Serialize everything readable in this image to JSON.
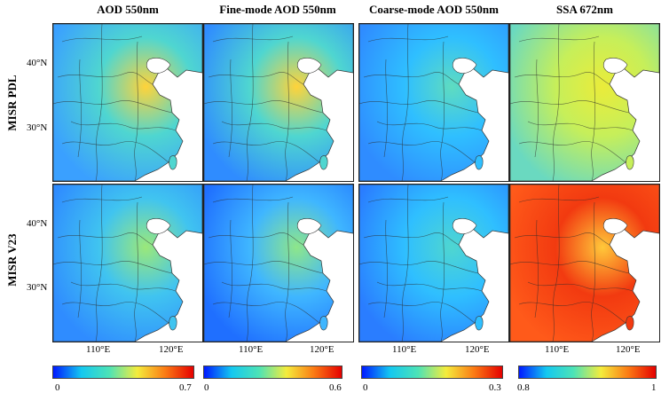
{
  "columns": [
    {
      "title": "AOD 550nm",
      "colorbar": {
        "min": "0",
        "max": "0.7",
        "colors": [
          "#0019ff",
          "#14c8f0",
          "#4de3b6",
          "#f4ec3c",
          "#fb7a14",
          "#e50000"
        ]
      }
    },
    {
      "title": "Fine-mode AOD 550nm",
      "colorbar": {
        "min": "0",
        "max": "0.6",
        "colors": [
          "#0019ff",
          "#14c8f0",
          "#4de3b6",
          "#f4ec3c",
          "#fb7a14",
          "#e50000"
        ]
      }
    },
    {
      "title": "Coarse-mode AOD 550nm",
      "colorbar": {
        "min": "0",
        "max": "0.3",
        "colors": [
          "#0019ff",
          "#14c8f0",
          "#4de3b6",
          "#f4ec3c",
          "#fb7a14",
          "#e50000"
        ]
      }
    },
    {
      "title": "SSA 672nm",
      "colorbar": {
        "min": "0.8",
        "max": "1",
        "colors": [
          "#0019ff",
          "#14c8f0",
          "#4de3b6",
          "#f4ec3c",
          "#fb7a14",
          "#e50000"
        ]
      }
    }
  ],
  "rows": [
    {
      "label": "MISR PDL"
    },
    {
      "label": "MISR V23"
    }
  ],
  "lat_ticks": [
    "40°N",
    "30°N"
  ],
  "lon_ticks": [
    "110°E",
    "120°E"
  ],
  "map_colors": {
    "r0c0": [
      "#3aa0ff",
      "#4fd6d0",
      "#ffd33a"
    ],
    "r0c1": [
      "#2f8cff",
      "#4fd6d0",
      "#ffd33a"
    ],
    "r0c2": [
      "#2f8cff",
      "#2fbfff",
      "#5fdcc0"
    ],
    "r0c3": [
      "#6ad9c0",
      "#c6ef5a",
      "#eaec3a"
    ],
    "r1c0": [
      "#2f8cff",
      "#40c4f0",
      "#9be87a"
    ],
    "r1c1": [
      "#1f6fff",
      "#3fb6ff",
      "#8ee68a"
    ],
    "r1c2": [
      "#2a7dff",
      "#2fbfff",
      "#4fd6d0"
    ],
    "r1c3": [
      "#ff5a1a",
      "#f23a10",
      "#ffc83a"
    ]
  }
}
